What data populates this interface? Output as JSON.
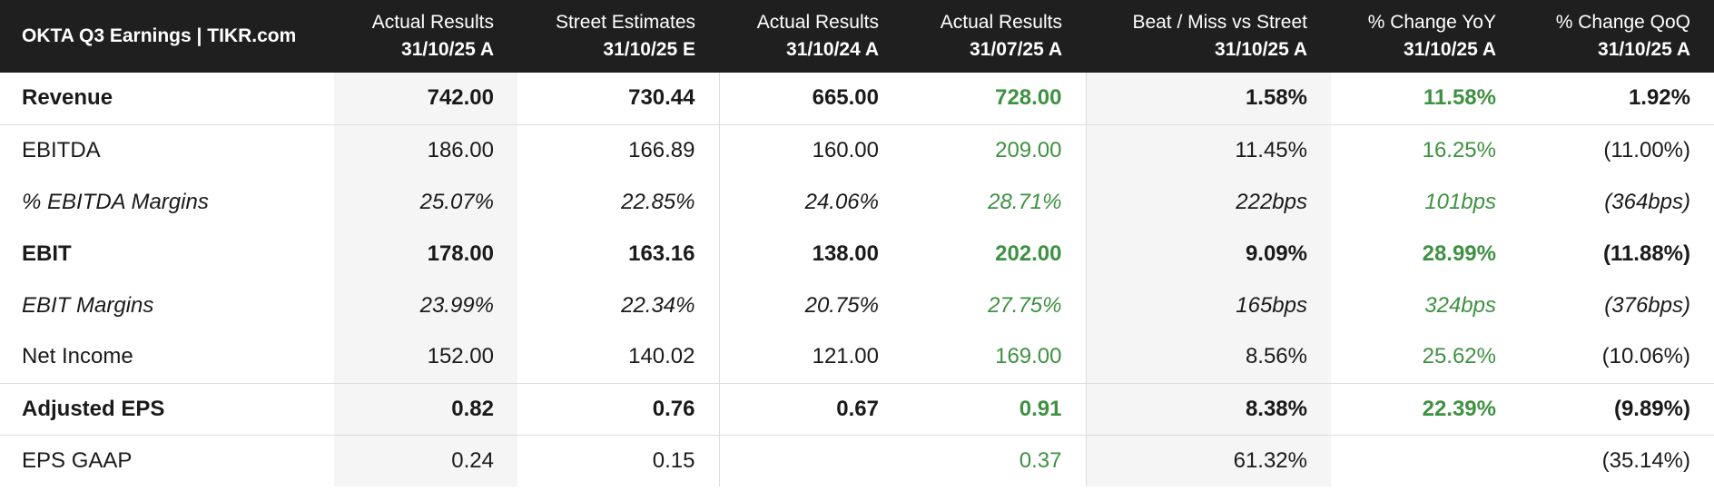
{
  "table": {
    "title": "OKTA Q3 Earnings | TIKR.com",
    "columns": [
      {
        "top": "Actual Results",
        "sub": "31/10/25 A"
      },
      {
        "top": "Street Estimates",
        "sub": "31/10/25 E"
      },
      {
        "top": "Actual Results",
        "sub": "31/10/24 A"
      },
      {
        "top": "Actual Results",
        "sub": "31/07/25 A"
      },
      {
        "top": "Beat / Miss vs Street",
        "sub": "31/10/25 A"
      },
      {
        "top": "% Change YoY",
        "sub": "31/10/25 A"
      },
      {
        "top": "% Change QoQ",
        "sub": "31/10/25 A"
      }
    ],
    "rows": [
      {
        "label": "Revenue",
        "style": "bold",
        "values": [
          "742.00",
          "730.44",
          "665.00",
          "728.00",
          "1.58%",
          "11.58%",
          "1.92%"
        ]
      },
      {
        "label": "EBITDA",
        "style": "normal",
        "values": [
          "186.00",
          "166.89",
          "160.00",
          "209.00",
          "11.45%",
          "16.25%",
          "(11.00%)"
        ]
      },
      {
        "label": "% EBITDA Margins",
        "style": "italic",
        "values": [
          "25.07%",
          "22.85%",
          "24.06%",
          "28.71%",
          "222bps",
          "101bps",
          "(364bps)"
        ]
      },
      {
        "label": "EBIT",
        "style": "bold",
        "values": [
          "178.00",
          "163.16",
          "138.00",
          "202.00",
          "9.09%",
          "28.99%",
          "(11.88%)"
        ]
      },
      {
        "label": "EBIT Margins",
        "style": "italic",
        "values": [
          "23.99%",
          "22.34%",
          "20.75%",
          "27.75%",
          "165bps",
          "324bps",
          "(376bps)"
        ]
      },
      {
        "label": "Net Income",
        "style": "normal",
        "values": [
          "152.00",
          "140.02",
          "121.00",
          "169.00",
          "8.56%",
          "25.62%",
          "(10.06%)"
        ]
      },
      {
        "label": "Adjusted EPS",
        "style": "bold",
        "values": [
          "0.82",
          "0.76",
          "0.67",
          "0.91",
          "8.38%",
          "22.39%",
          "(9.89%)"
        ]
      },
      {
        "label": "EPS GAAP",
        "style": "normal",
        "values": [
          "0.24",
          "0.15",
          "",
          "0.37",
          "61.32%",
          "",
          "(35.14%)"
        ]
      }
    ],
    "colors": {
      "header_bg": "#1f1f1f",
      "positive": "#3f9142",
      "negative": "#cf3b3b",
      "shade": "#f5f5f5"
    }
  }
}
